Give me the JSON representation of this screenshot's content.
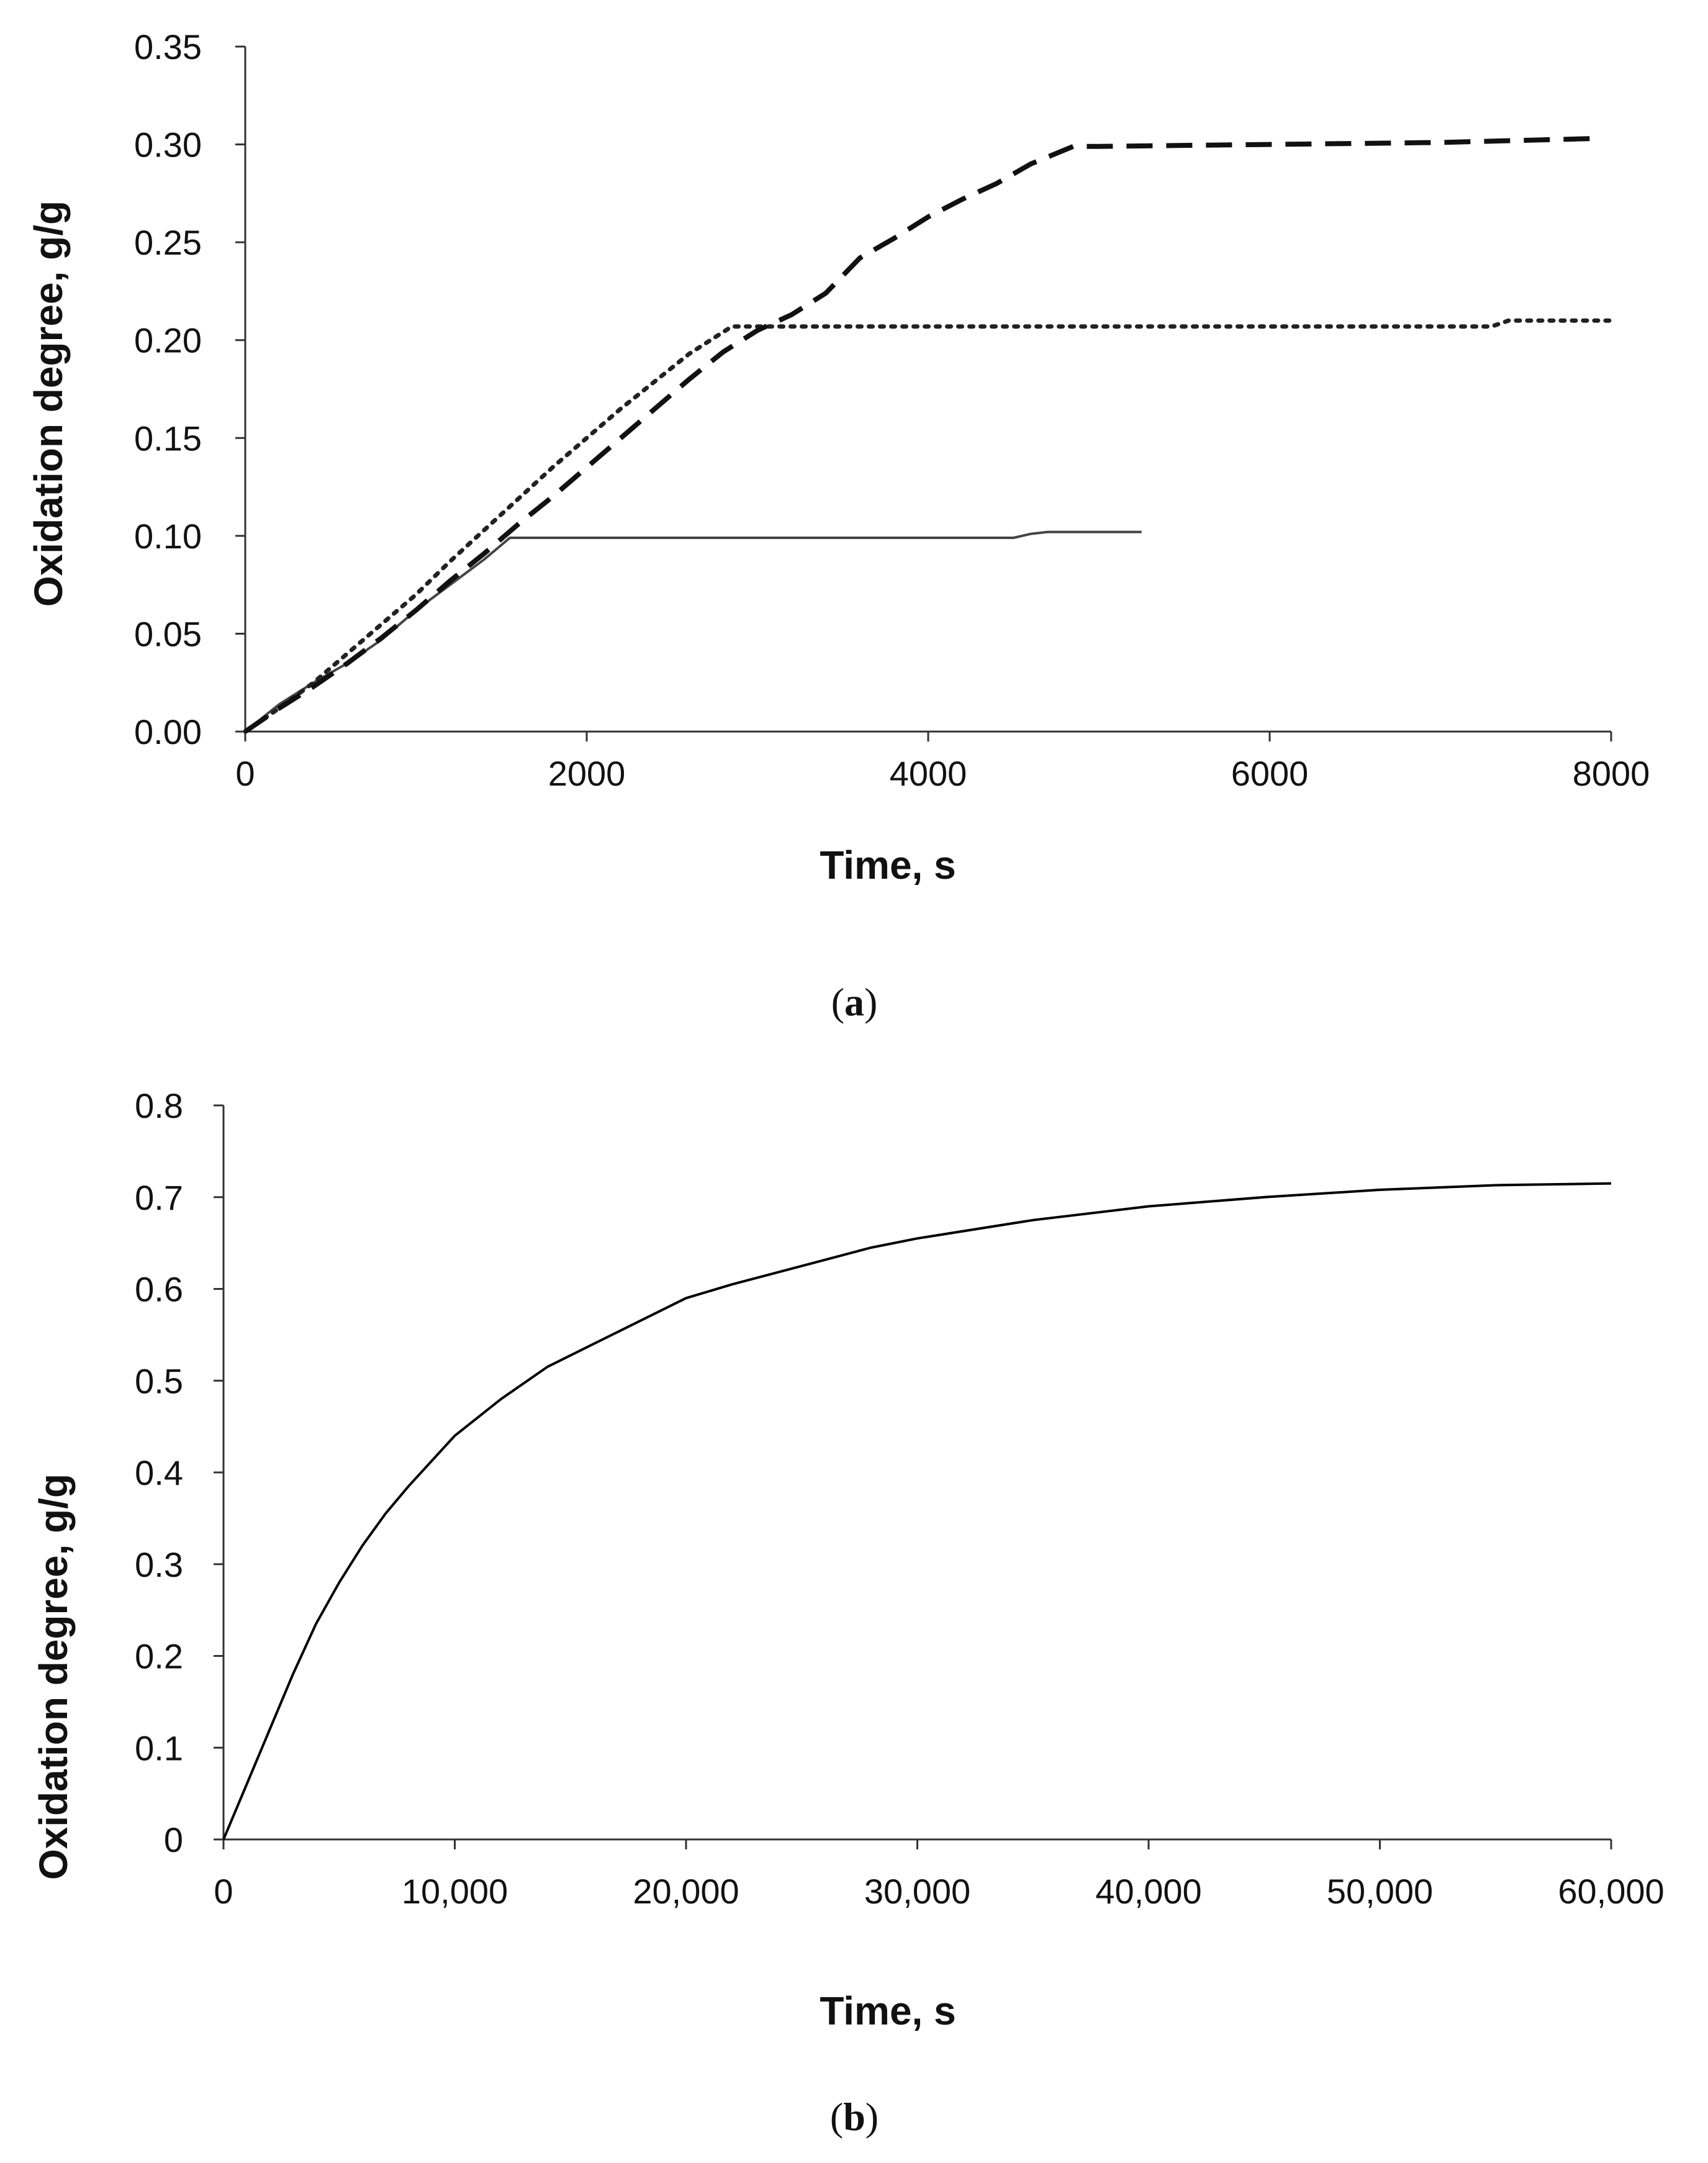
{
  "chart_data": [
    {
      "type": "line",
      "panel": "a",
      "caption": {
        "open": "(",
        "letter": "a",
        "close": ")"
      },
      "xlabel": "Time, s",
      "ylabel": "Oxidation degree, g/g",
      "xlim": [
        0,
        8000
      ],
      "ylim": [
        0,
        0.35
      ],
      "xticks": [
        0,
        2000,
        4000,
        6000,
        8000
      ],
      "xtick_labels": [
        "0",
        "2000",
        "4000",
        "6000",
        "8000"
      ],
      "yticks": [
        0,
        0.05,
        0.1,
        0.15,
        0.2,
        0.25,
        0.3,
        0.35
      ],
      "ytick_labels": [
        "0.00",
        "0.05",
        "0.10",
        "0.15",
        "0.20",
        "0.25",
        "0.30",
        "0.35"
      ],
      "grid": false,
      "series": [
        {
          "name": "solid",
          "style": "solid",
          "color": "#444444",
          "x": [
            0,
            100,
            200,
            400,
            600,
            800,
            1000,
            1200,
            1400,
            1550,
            2000,
            3000,
            4000,
            4500,
            4600,
            4700,
            5000,
            5250
          ],
          "y": [
            0,
            0.007,
            0.014,
            0.025,
            0.035,
            0.047,
            0.062,
            0.075,
            0.088,
            0.099,
            0.099,
            0.099,
            0.099,
            0.099,
            0.101,
            0.102,
            0.102,
            0.102
          ]
        },
        {
          "name": "dotted",
          "style": "dotted",
          "color": "#222222",
          "x": [
            0,
            200,
            400,
            600,
            800,
            1000,
            1200,
            1400,
            1600,
            1800,
            2000,
            2200,
            2400,
            2600,
            2850,
            3000,
            4000,
            5000,
            6000,
            7000,
            7300,
            7400,
            8000
          ],
          "y": [
            0,
            0.012,
            0.025,
            0.04,
            0.055,
            0.07,
            0.087,
            0.103,
            0.119,
            0.135,
            0.15,
            0.165,
            0.179,
            0.193,
            0.207,
            0.207,
            0.207,
            0.207,
            0.207,
            0.207,
            0.207,
            0.21,
            0.21
          ]
        },
        {
          "name": "dashed",
          "style": "dashed",
          "color": "#111111",
          "x": [
            0,
            200,
            400,
            600,
            800,
            1000,
            1200,
            1400,
            1600,
            1800,
            2000,
            2200,
            2400,
            2600,
            2800,
            3000,
            3200,
            3400,
            3600,
            3800,
            4000,
            4200,
            4400,
            4600,
            4850,
            5000,
            6000,
            7000,
            7900
          ],
          "y": [
            0,
            0.012,
            0.023,
            0.035,
            0.048,
            0.062,
            0.077,
            0.091,
            0.106,
            0.12,
            0.135,
            0.15,
            0.165,
            0.18,
            0.194,
            0.205,
            0.213,
            0.224,
            0.242,
            0.252,
            0.263,
            0.272,
            0.28,
            0.29,
            0.299,
            0.299,
            0.3,
            0.301,
            0.303
          ]
        }
      ]
    },
    {
      "type": "line",
      "panel": "b",
      "caption": {
        "open": "(",
        "letter": "b",
        "close": ")"
      },
      "xlabel": "Time, s",
      "ylabel": "Oxidation degree, g/g",
      "xlim": [
        0,
        60000
      ],
      "ylim": [
        0,
        0.8
      ],
      "xticks": [
        0,
        10000,
        20000,
        30000,
        40000,
        50000,
        60000
      ],
      "xtick_labels": [
        "0",
        "10,000",
        "20,000",
        "30,000",
        "40,000",
        "50,000",
        "60,000"
      ],
      "yticks": [
        0,
        0.1,
        0.2,
        0.3,
        0.4,
        0.5,
        0.6,
        0.7,
        0.8
      ],
      "ytick_labels": [
        "0",
        "0.1",
        "0.2",
        "0.3",
        "0.4",
        "0.5",
        "0.6",
        "0.7",
        "0.8"
      ],
      "grid": false,
      "series": [
        {
          "name": "curve",
          "style": "solid",
          "color": "#000000",
          "x": [
            0,
            1000,
            2000,
            3000,
            4000,
            5000,
            6000,
            7000,
            8000,
            10000,
            12000,
            14000,
            16000,
            18000,
            20000,
            22000,
            25000,
            28000,
            30000,
            35000,
            40000,
            45000,
            50000,
            55000,
            60000
          ],
          "y": [
            0,
            0.06,
            0.12,
            0.18,
            0.235,
            0.28,
            0.32,
            0.355,
            0.385,
            0.44,
            0.48,
            0.515,
            0.54,
            0.565,
            0.59,
            0.605,
            0.625,
            0.645,
            0.655,
            0.675,
            0.69,
            0.7,
            0.708,
            0.713,
            0.715
          ]
        }
      ]
    }
  ]
}
